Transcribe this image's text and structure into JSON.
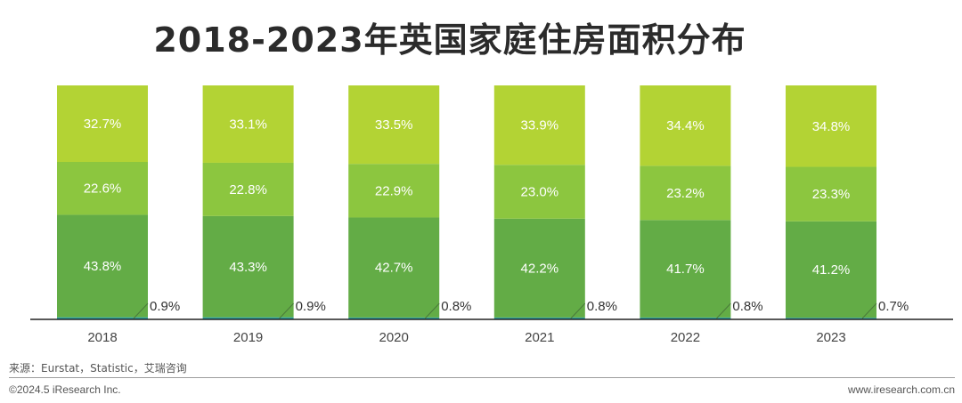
{
  "title": "2018-2023年英国家庭住房面积分布",
  "source": "来源：Eurstat，Statistic，艾瑞咨询",
  "copyright": "©2024.5 iResearch Inc.",
  "website": "www.iresearch.com.cn",
  "colors": {
    "top": "#b3d334",
    "middle": "#8cc63f",
    "lower": "#63ac46",
    "base": "#2ba0a0",
    "axis": "#222222"
  },
  "chart_data": {
    "type": "bar",
    "stacked": true,
    "categories": [
      "2018",
      "2019",
      "2020",
      "2021",
      "2022",
      "2023"
    ],
    "series": [
      {
        "values": [
          0.9,
          0.9,
          0.8,
          0.8,
          0.8,
          0.7
        ],
        "labels": [
          "0.9%",
          "0.9%",
          "0.8%",
          "0.8%",
          "0.8%",
          "0.7%"
        ]
      },
      {
        "values": [
          43.8,
          43.3,
          42.7,
          42.2,
          41.7,
          41.2
        ],
        "labels": [
          "43.8%",
          "43.3%",
          "42.7%",
          "42.2%",
          "41.7%",
          "41.2%"
        ]
      },
      {
        "values": [
          22.6,
          22.8,
          22.9,
          23.0,
          23.2,
          23.3
        ],
        "labels": [
          "22.6%",
          "22.8%",
          "22.9%",
          "23.0%",
          "23.2%",
          "23.3%"
        ]
      },
      {
        "values": [
          32.7,
          33.1,
          33.5,
          33.9,
          34.4,
          34.8
        ],
        "labels": [
          "32.7%",
          "33.1%",
          "33.5%",
          "33.9%",
          "34.4%",
          "34.8%"
        ]
      }
    ],
    "ylim": [
      0,
      100
    ]
  }
}
